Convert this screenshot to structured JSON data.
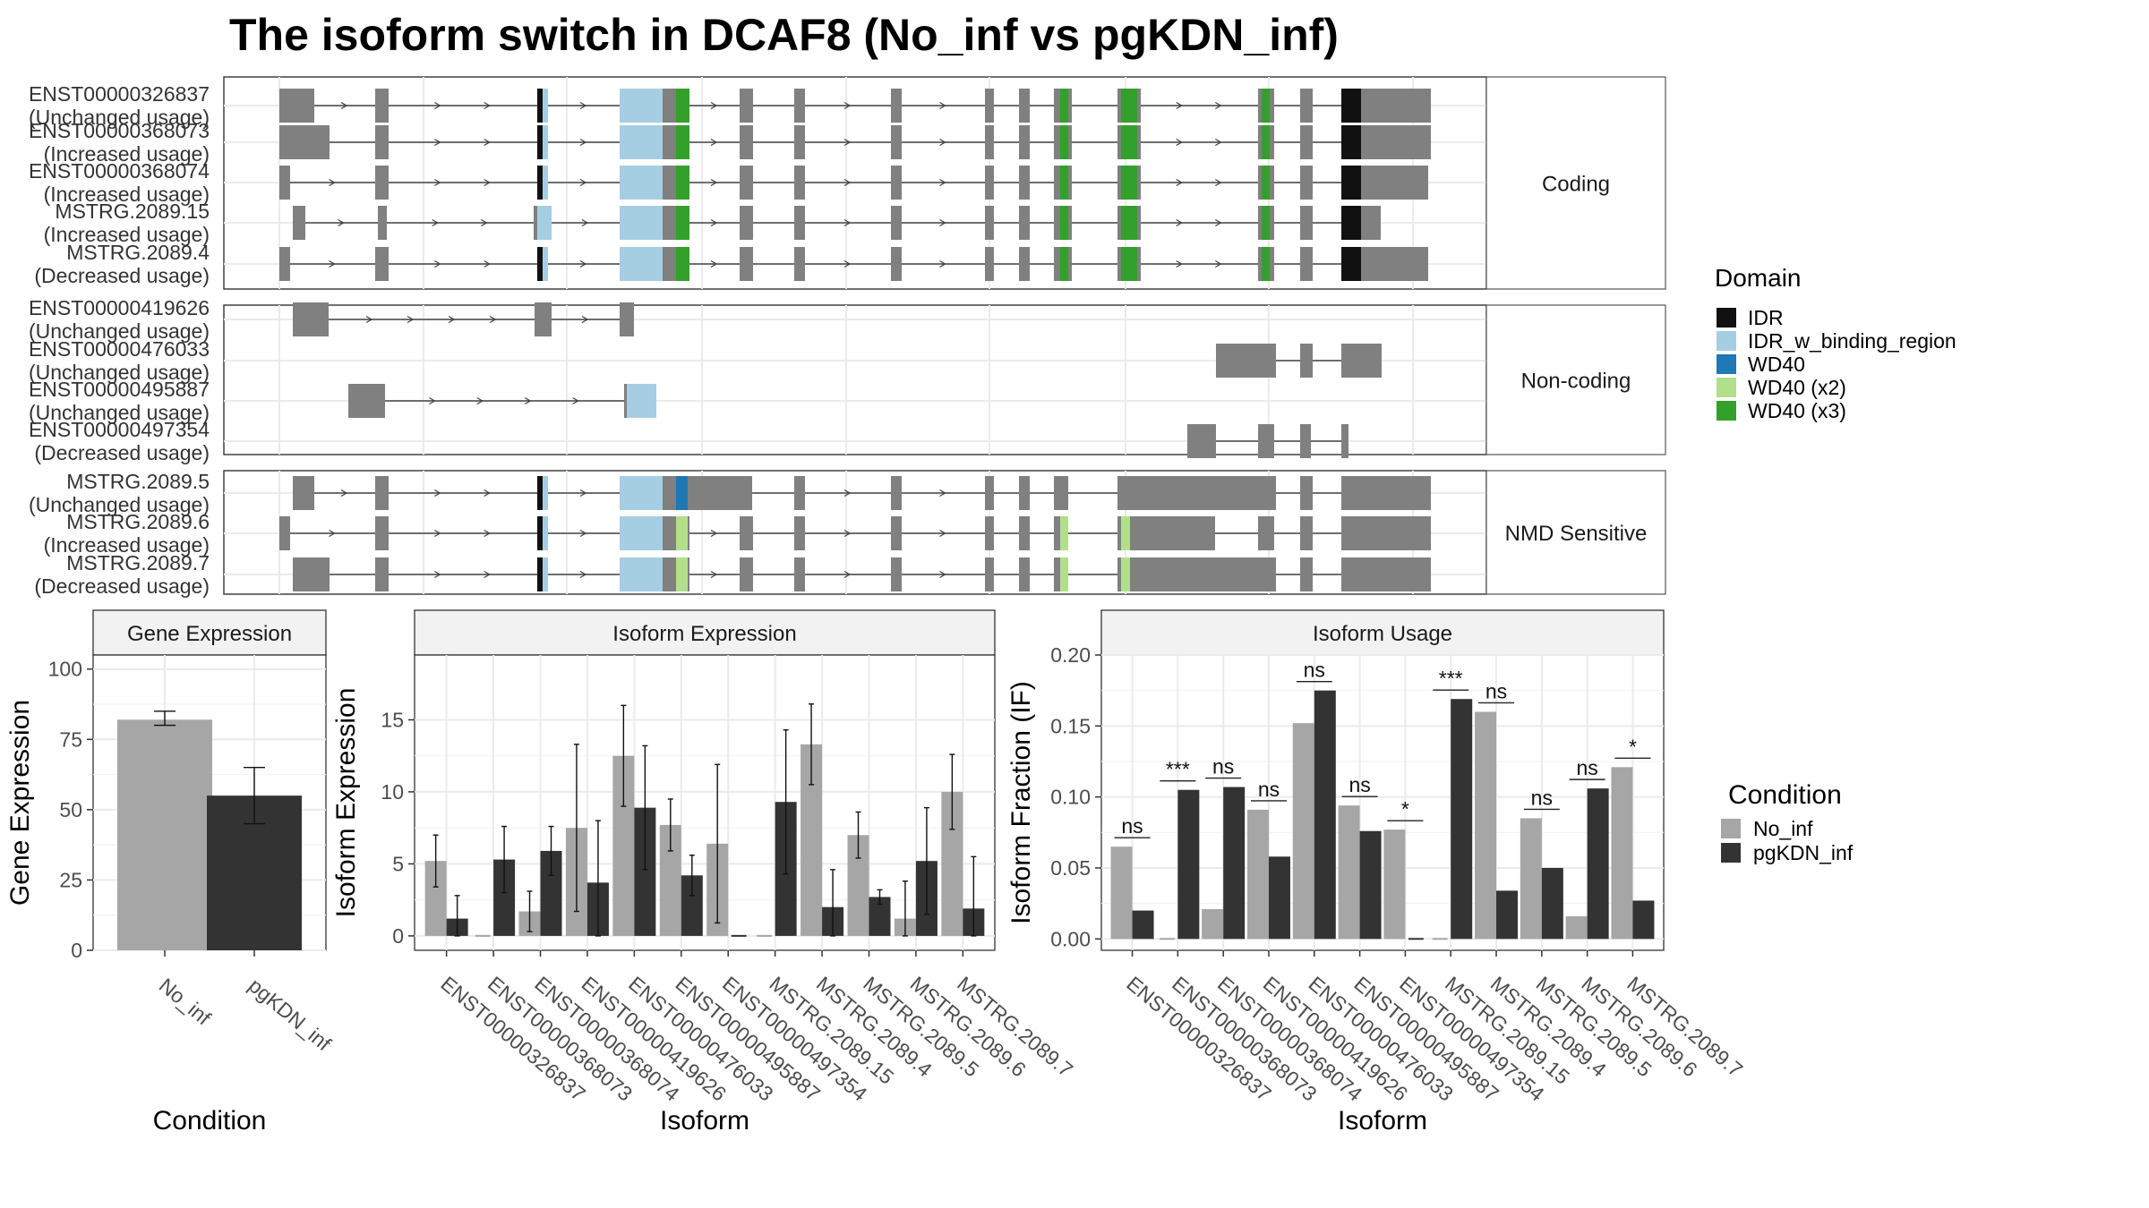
{
  "title": "The isoform switch in DCAF8 (No_inf vs pgKDN_inf)",
  "colors": {
    "IDR": "#111111",
    "IDR_w_binding_region": "#a6cee3",
    "WD40": "#1f78b4",
    "WD40 (x2)": "#b2df8a",
    "WD40 (x3)": "#33a02c",
    "exon": "#808080",
    "No_inf": "#a6a6a6",
    "pgKDN_inf": "#333333"
  },
  "structure": {
    "panels": [
      {
        "label": "Coding",
        "isoforms": [
          {
            "id": "ENST00000326837",
            "usage": "(Unchanged usage)"
          },
          {
            "id": "ENST00000368073",
            "usage": "(Increased usage)"
          },
          {
            "id": "ENST00000368074",
            "usage": "(Increased usage)"
          },
          {
            "id": "MSTRG.2089.15",
            "usage": "(Increased usage)"
          },
          {
            "id": "MSTRG.2089.4",
            "usage": "(Decreased usage)"
          }
        ]
      },
      {
        "label": "Non-coding",
        "isoforms": [
          {
            "id": "ENST00000419626",
            "usage": "(Unchanged usage)"
          },
          {
            "id": "ENST00000476033",
            "usage": "(Unchanged usage)"
          },
          {
            "id": "ENST00000495887",
            "usage": "(Unchanged usage)"
          },
          {
            "id": "ENST00000497354",
            "usage": "(Decreased usage)"
          }
        ]
      },
      {
        "label": "NMD Sensitive",
        "isoforms": [
          {
            "id": "MSTRG.2089.5",
            "usage": "(Unchanged usage)"
          },
          {
            "id": "MSTRG.2089.6",
            "usage": "(Increased usage)"
          },
          {
            "id": "MSTRG.2089.7",
            "usage": "(Decreased usage)"
          }
        ]
      }
    ]
  },
  "domain_legend": {
    "title": "Domain",
    "items": [
      "IDR",
      "IDR_w_binding_region",
      "WD40",
      "WD40 (x2)",
      "WD40 (x3)"
    ]
  },
  "condition_legend": {
    "title": "Condition",
    "items": [
      "No_inf",
      "pgKDN_inf"
    ]
  },
  "chart_data": [
    {
      "type": "bar",
      "title": "Gene Expression",
      "xlabel": "Condition",
      "ylabel": "Gene Expression",
      "categories": [
        "No_inf",
        "pgKDN_inf"
      ],
      "values": [
        82,
        55
      ],
      "errors": [
        [
          80,
          85
        ],
        [
          45,
          65
        ]
      ],
      "ylim": [
        0,
        105
      ],
      "yticks": [
        "0",
        "25",
        "50",
        "75",
        "100"
      ]
    },
    {
      "type": "bar",
      "title": "Isoform Expression",
      "xlabel": "Isoform",
      "ylabel": "Isoform Expression",
      "categories": [
        "ENST00000326837",
        "ENST00000368073",
        "ENST00000368074",
        "ENST00000419626",
        "ENST00000476033",
        "ENST00000495887",
        "ENST00000497354",
        "MSTRG.2089.15",
        "MSTRG.2089.4",
        "MSTRG.2089.5",
        "MSTRG.2089.6",
        "MSTRG.2089.7"
      ],
      "series": [
        {
          "name": "No_inf",
          "values": [
            5.2,
            0,
            1.7,
            7.5,
            12.5,
            7.7,
            6.4,
            0,
            13.3,
            7.0,
            1.2,
            10.0
          ],
          "errors": [
            [
              3.4,
              7.0
            ],
            [
              0,
              0
            ],
            [
              0.3,
              3.1
            ],
            [
              1.7,
              13.3
            ],
            [
              9.0,
              16.0
            ],
            [
              5.9,
              9.5
            ],
            [
              0.9,
              11.9
            ],
            [
              0,
              0
            ],
            [
              10.5,
              16.1
            ],
            [
              5.4,
              8.6
            ],
            [
              0,
              3.8
            ],
            [
              7.4,
              12.6
            ]
          ]
        },
        {
          "name": "pgKDN_inf",
          "values": [
            1.2,
            5.3,
            5.9,
            3.7,
            8.9,
            4.2,
            0,
            9.3,
            2.0,
            2.7,
            5.2,
            1.9
          ],
          "errors": [
            [
              0,
              2.8
            ],
            [
              3.0,
              7.6
            ],
            [
              4.2,
              7.6
            ],
            [
              0,
              8.0
            ],
            [
              4.6,
              13.2
            ],
            [
              2.8,
              5.6
            ],
            [
              0,
              0
            ],
            [
              4.3,
              14.3
            ],
            [
              0,
              4.6
            ],
            [
              2.2,
              3.2
            ],
            [
              1.5,
              8.9
            ],
            [
              0,
              5.5
            ]
          ]
        }
      ],
      "ylim": [
        -1,
        19.5
      ],
      "yticks": [
        "0",
        "5",
        "10",
        "15"
      ]
    },
    {
      "type": "bar",
      "title": "Isoform Usage",
      "xlabel": "Isoform",
      "ylabel": "Isoform Fraction (IF)",
      "categories": [
        "ENST00000326837",
        "ENST00000368073",
        "ENST00000368074",
        "ENST00000419626",
        "ENST00000476033",
        "ENST00000495887",
        "ENST00000497354",
        "MSTRG.2089.15",
        "MSTRG.2089.4",
        "MSTRG.2089.5",
        "MSTRG.2089.6",
        "MSTRG.2089.7"
      ],
      "series": [
        {
          "name": "No_inf",
          "values": [
            0.065,
            0.0,
            0.021,
            0.091,
            0.152,
            0.094,
            0.077,
            0.0,
            0.16,
            0.085,
            0.016,
            0.121
          ]
        },
        {
          "name": "pgKDN_inf",
          "values": [
            0.02,
            0.105,
            0.107,
            0.058,
            0.175,
            0.076,
            0.0,
            0.169,
            0.034,
            0.05,
            0.106,
            0.027
          ]
        }
      ],
      "significance": [
        "ns",
        "***",
        "ns",
        "ns",
        "ns",
        "ns",
        "*",
        "***",
        "ns",
        "ns",
        "ns",
        "*"
      ],
      "ylim": [
        -0.008,
        0.2
      ],
      "yticks": [
        "0.00",
        "0.05",
        "0.10",
        "0.15",
        "0.20"
      ]
    }
  ]
}
